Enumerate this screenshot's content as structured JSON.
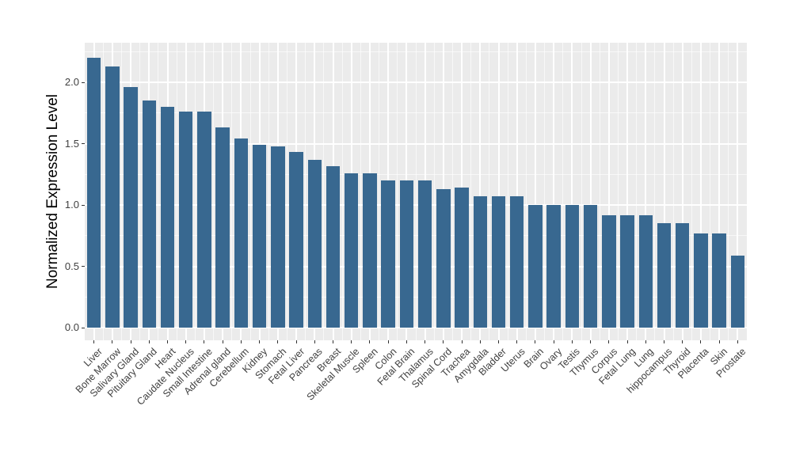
{
  "chart_data": {
    "type": "bar",
    "title": "",
    "xlabel": "",
    "ylabel": "Normalized Expression Level",
    "categories": [
      "Liver",
      "Bone Marrow",
      "Salivary Gland",
      "Pituitary Gland",
      "Heart",
      "Caudate Nucleus",
      "Small Intestine",
      "Adrenal gland",
      "Cerebellum",
      "Kidney",
      "Stomach",
      "Fetal Liver",
      "Pancreas",
      "Breast",
      "Skeletal Muscle",
      "Spleen",
      "Colon",
      "Fetal Brain",
      "Thalamus",
      "Spinal Cord",
      "Trachea",
      "Amygdala",
      "Bladder",
      "Uterus",
      "Brain",
      "Ovary",
      "Testis",
      "Thymus",
      "Corpus",
      "Fetal Lung",
      "Lung",
      "hippocampus",
      "Thyroid",
      "Placenta",
      "Skin",
      "Prostate"
    ],
    "values": [
      2.2,
      2.13,
      1.96,
      1.85,
      1.8,
      1.76,
      1.76,
      1.63,
      1.54,
      1.49,
      1.48,
      1.43,
      1.37,
      1.32,
      1.26,
      1.26,
      1.2,
      1.2,
      1.2,
      1.13,
      1.14,
      1.07,
      1.07,
      1.07,
      1.0,
      1.0,
      1.0,
      1.0,
      0.92,
      0.92,
      0.92,
      0.85,
      0.85,
      0.77,
      0.77,
      0.59
    ],
    "ylim": [
      0,
      2.32
    ],
    "y_major_ticks": [
      0.0,
      0.5,
      1.0,
      1.5,
      2.0
    ],
    "y_major_tick_labels": [
      "0.0",
      "0.5",
      "1.0",
      "1.5",
      "2.0"
    ],
    "y_minor_ticks": [
      0.25,
      0.75,
      1.25,
      1.75,
      2.25
    ],
    "grid": true,
    "legend": false,
    "x_label_angle_deg": 45,
    "colors": {
      "bar_fill": "#386890",
      "panel_background": "#EBEBEB",
      "gridline": "#FFFFFF",
      "tick_label": "#404040",
      "axis_title": "#000000",
      "figure_background": "#FFFFFF"
    }
  }
}
